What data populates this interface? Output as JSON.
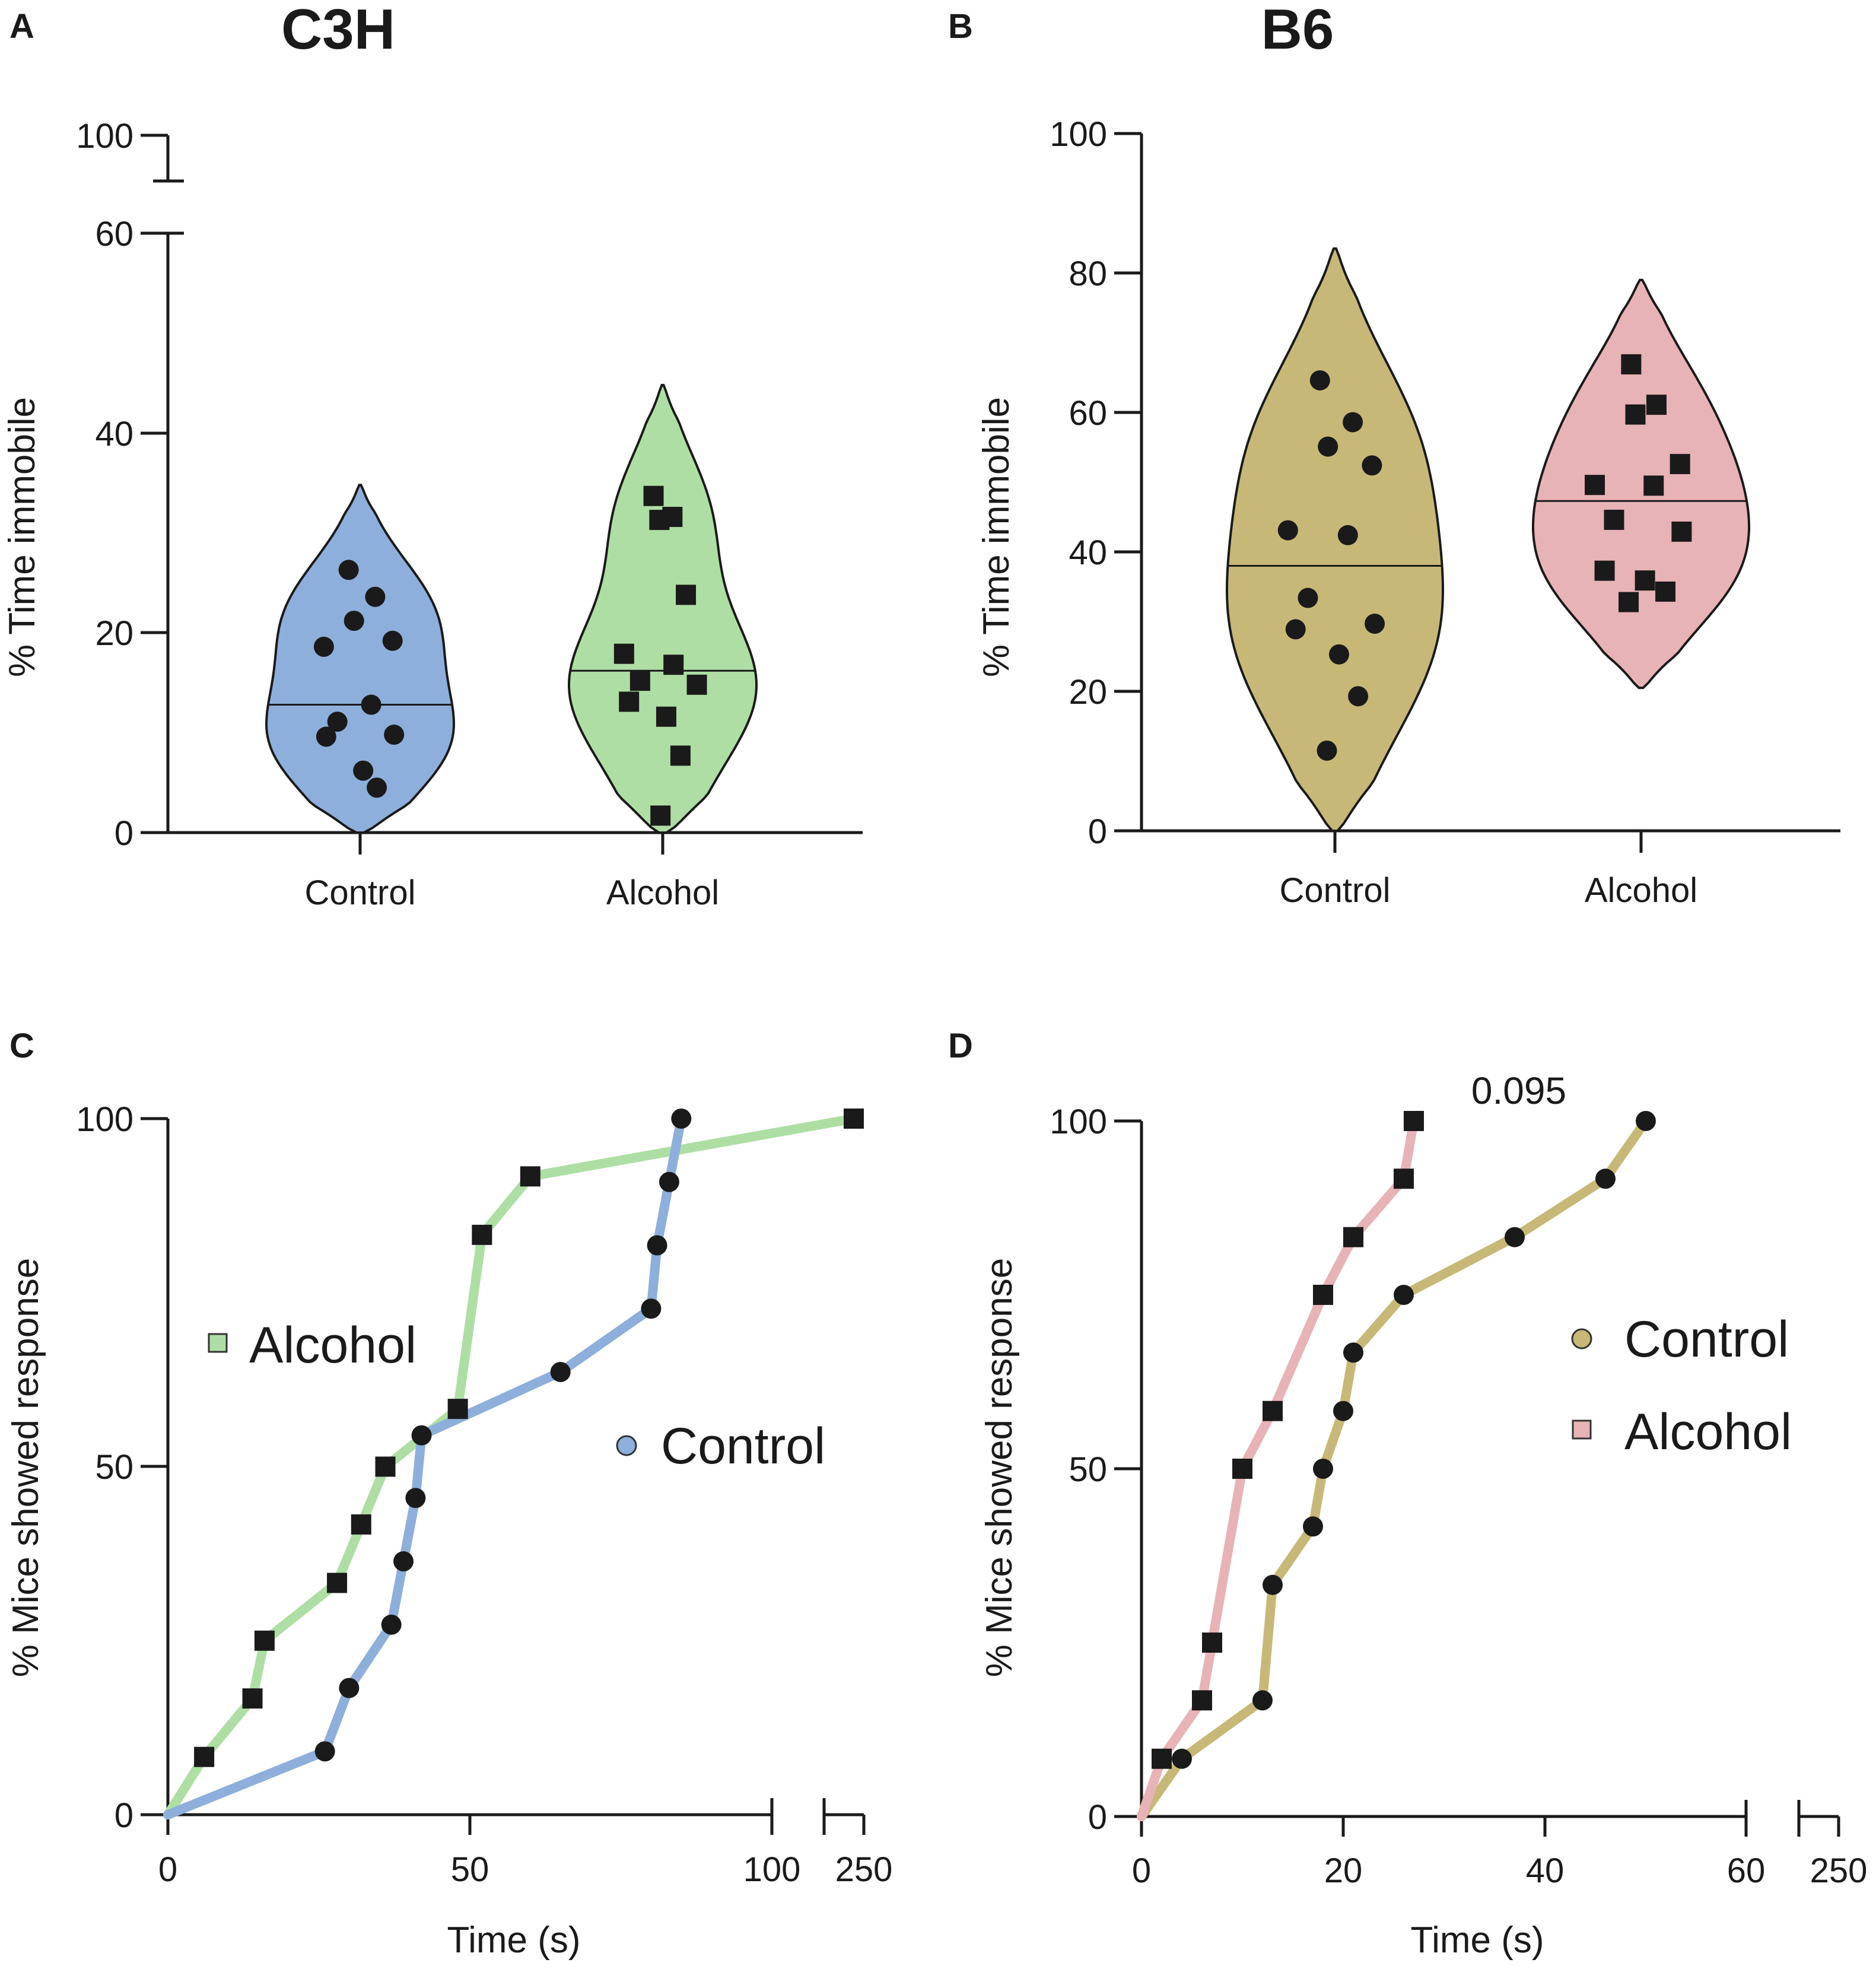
{
  "figure": {
    "panels": [
      {
        "id": "A",
        "letter": "A",
        "title": "C3H"
      },
      {
        "id": "B",
        "letter": "B",
        "title": "B6"
      },
      {
        "id": "C",
        "letter": "C",
        "title": ""
      },
      {
        "id": "D",
        "letter": "D",
        "title": ""
      }
    ]
  },
  "chart_data": [
    {
      "panel": "A",
      "type": "violin",
      "title": "C3H",
      "ylabel": "% Time immobile",
      "xlabel": "",
      "categories": [
        "Control",
        "Alcohol"
      ],
      "ylim": [
        0,
        100
      ],
      "y_axis_break": [
        60,
        100
      ],
      "yticks": [
        0,
        20,
        40,
        60,
        100
      ],
      "colors": {
        "Control": "#8eafdb",
        "Alcohol": "#aedea4"
      },
      "series": [
        {
          "name": "Control",
          "marker": "circle",
          "median": 12.8,
          "range": [
            0,
            34.8
          ],
          "points": [
            26.3,
            23.6,
            21.2,
            19.2,
            18.6,
            12.8,
            11.1,
            9.8,
            9.6,
            6.2,
            4.5
          ]
        },
        {
          "name": "Alcohol",
          "marker": "square",
          "median": 16.2,
          "range": [
            0,
            44.8
          ],
          "points": [
            33.7,
            31.6,
            31.3,
            23.8,
            17.9,
            16.8,
            15.2,
            14.8,
            13.1,
            11.6,
            7.7,
            1.7
          ]
        }
      ]
    },
    {
      "panel": "B",
      "type": "violin",
      "title": "B6",
      "ylabel": "% Time immobile",
      "xlabel": "",
      "categories": [
        "Control",
        "Alcohol"
      ],
      "ylim": [
        0,
        100
      ],
      "yticks": [
        0,
        20,
        40,
        60,
        80,
        100
      ],
      "colors": {
        "Control": "#c8b878",
        "Alcohol": "#e8b3b6"
      },
      "series": [
        {
          "name": "Control",
          "marker": "circle",
          "median": 38,
          "range": [
            0,
            83.5
          ],
          "points": [
            64.6,
            58.6,
            55.1,
            52.4,
            43.1,
            42.4,
            33.4,
            29.7,
            28.9,
            25.3,
            19.3,
            11.5
          ]
        },
        {
          "name": "Alcohol",
          "marker": "square",
          "median": 47.3,
          "range": [
            20.5,
            79
          ],
          "points": [
            66.9,
            61.1,
            59.7,
            52.6,
            49.6,
            49.5,
            44.6,
            42.9,
            37.3,
            35.9,
            34.3,
            32.8
          ]
        }
      ]
    },
    {
      "panel": "C",
      "type": "line",
      "title": "",
      "xlabel": "Time (s)",
      "ylabel": "% Mice showed response",
      "xlim": [
        0,
        250
      ],
      "x_axis_break": [
        100,
        250
      ],
      "xticks": [
        0,
        50,
        100,
        250
      ],
      "ylim": [
        0,
        100
      ],
      "yticks": [
        0,
        50,
        100
      ],
      "legend": [
        "Alcohol",
        "Control"
      ],
      "series": [
        {
          "name": "Alcohol",
          "marker": "square",
          "color": "#aedea4",
          "x": [
            0,
            6,
            14,
            16,
            28,
            32,
            36,
            48,
            52,
            60,
            250
          ],
          "y": [
            0,
            8.3,
            16.7,
            25,
            33.3,
            41.7,
            50,
            58.3,
            83.3,
            91.7,
            100
          ]
        },
        {
          "name": "Control",
          "marker": "circle",
          "color": "#8eafdb",
          "x": [
            0,
            26,
            30,
            37,
            39,
            41,
            42,
            65,
            80,
            81,
            83,
            85
          ],
          "y": [
            0,
            9.1,
            18.2,
            27.3,
            36.4,
            45.5,
            54.5,
            63.6,
            72.7,
            81.8,
            90.9,
            100
          ]
        }
      ]
    },
    {
      "panel": "D",
      "type": "line",
      "title": "",
      "xlabel": "Time (s)",
      "ylabel": "% Mice showed response",
      "xlim": [
        0,
        250
      ],
      "x_axis_break": [
        60,
        250
      ],
      "xticks": [
        0,
        20,
        40,
        60,
        250
      ],
      "ylim": [
        0,
        100
      ],
      "yticks": [
        0,
        50,
        100
      ],
      "annotation": "0.095",
      "legend": [
        "Control",
        "Alcohol"
      ],
      "series": [
        {
          "name": "Control",
          "marker": "circle",
          "color": "#c8b878",
          "x": [
            0,
            4,
            12,
            13,
            17,
            18,
            20,
            21,
            26,
            37,
            46,
            50
          ],
          "y": [
            0,
            8.3,
            16.7,
            33.3,
            41.7,
            50,
            58.3,
            66.7,
            75,
            83.3,
            91.7,
            100
          ]
        },
        {
          "name": "Alcohol",
          "marker": "square",
          "color": "#e8b3b6",
          "x": [
            0,
            2,
            6,
            7,
            10,
            13,
            18,
            21,
            26,
            27
          ],
          "y": [
            0,
            8.3,
            16.7,
            25,
            50,
            58.3,
            75,
            83.3,
            91.7,
            100
          ]
        }
      ]
    }
  ]
}
